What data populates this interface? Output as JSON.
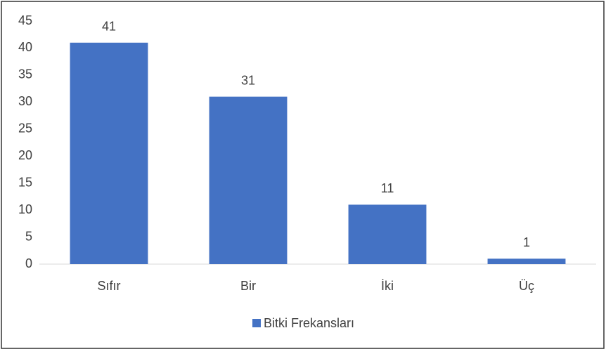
{
  "chart_data": {
    "type": "bar",
    "categories": [
      "Sıfır",
      "Bir",
      "İki",
      "Üç"
    ],
    "series": [
      {
        "name": "Bitki Frekansları",
        "color": "#4472c4",
        "values": [
          41,
          31,
          11,
          1
        ]
      }
    ],
    "ylim": [
      0,
      45
    ],
    "yticks": [
      0,
      5,
      10,
      15,
      20,
      25,
      30,
      35,
      40,
      45
    ],
    "legend": "bottom",
    "data_labels": true
  }
}
